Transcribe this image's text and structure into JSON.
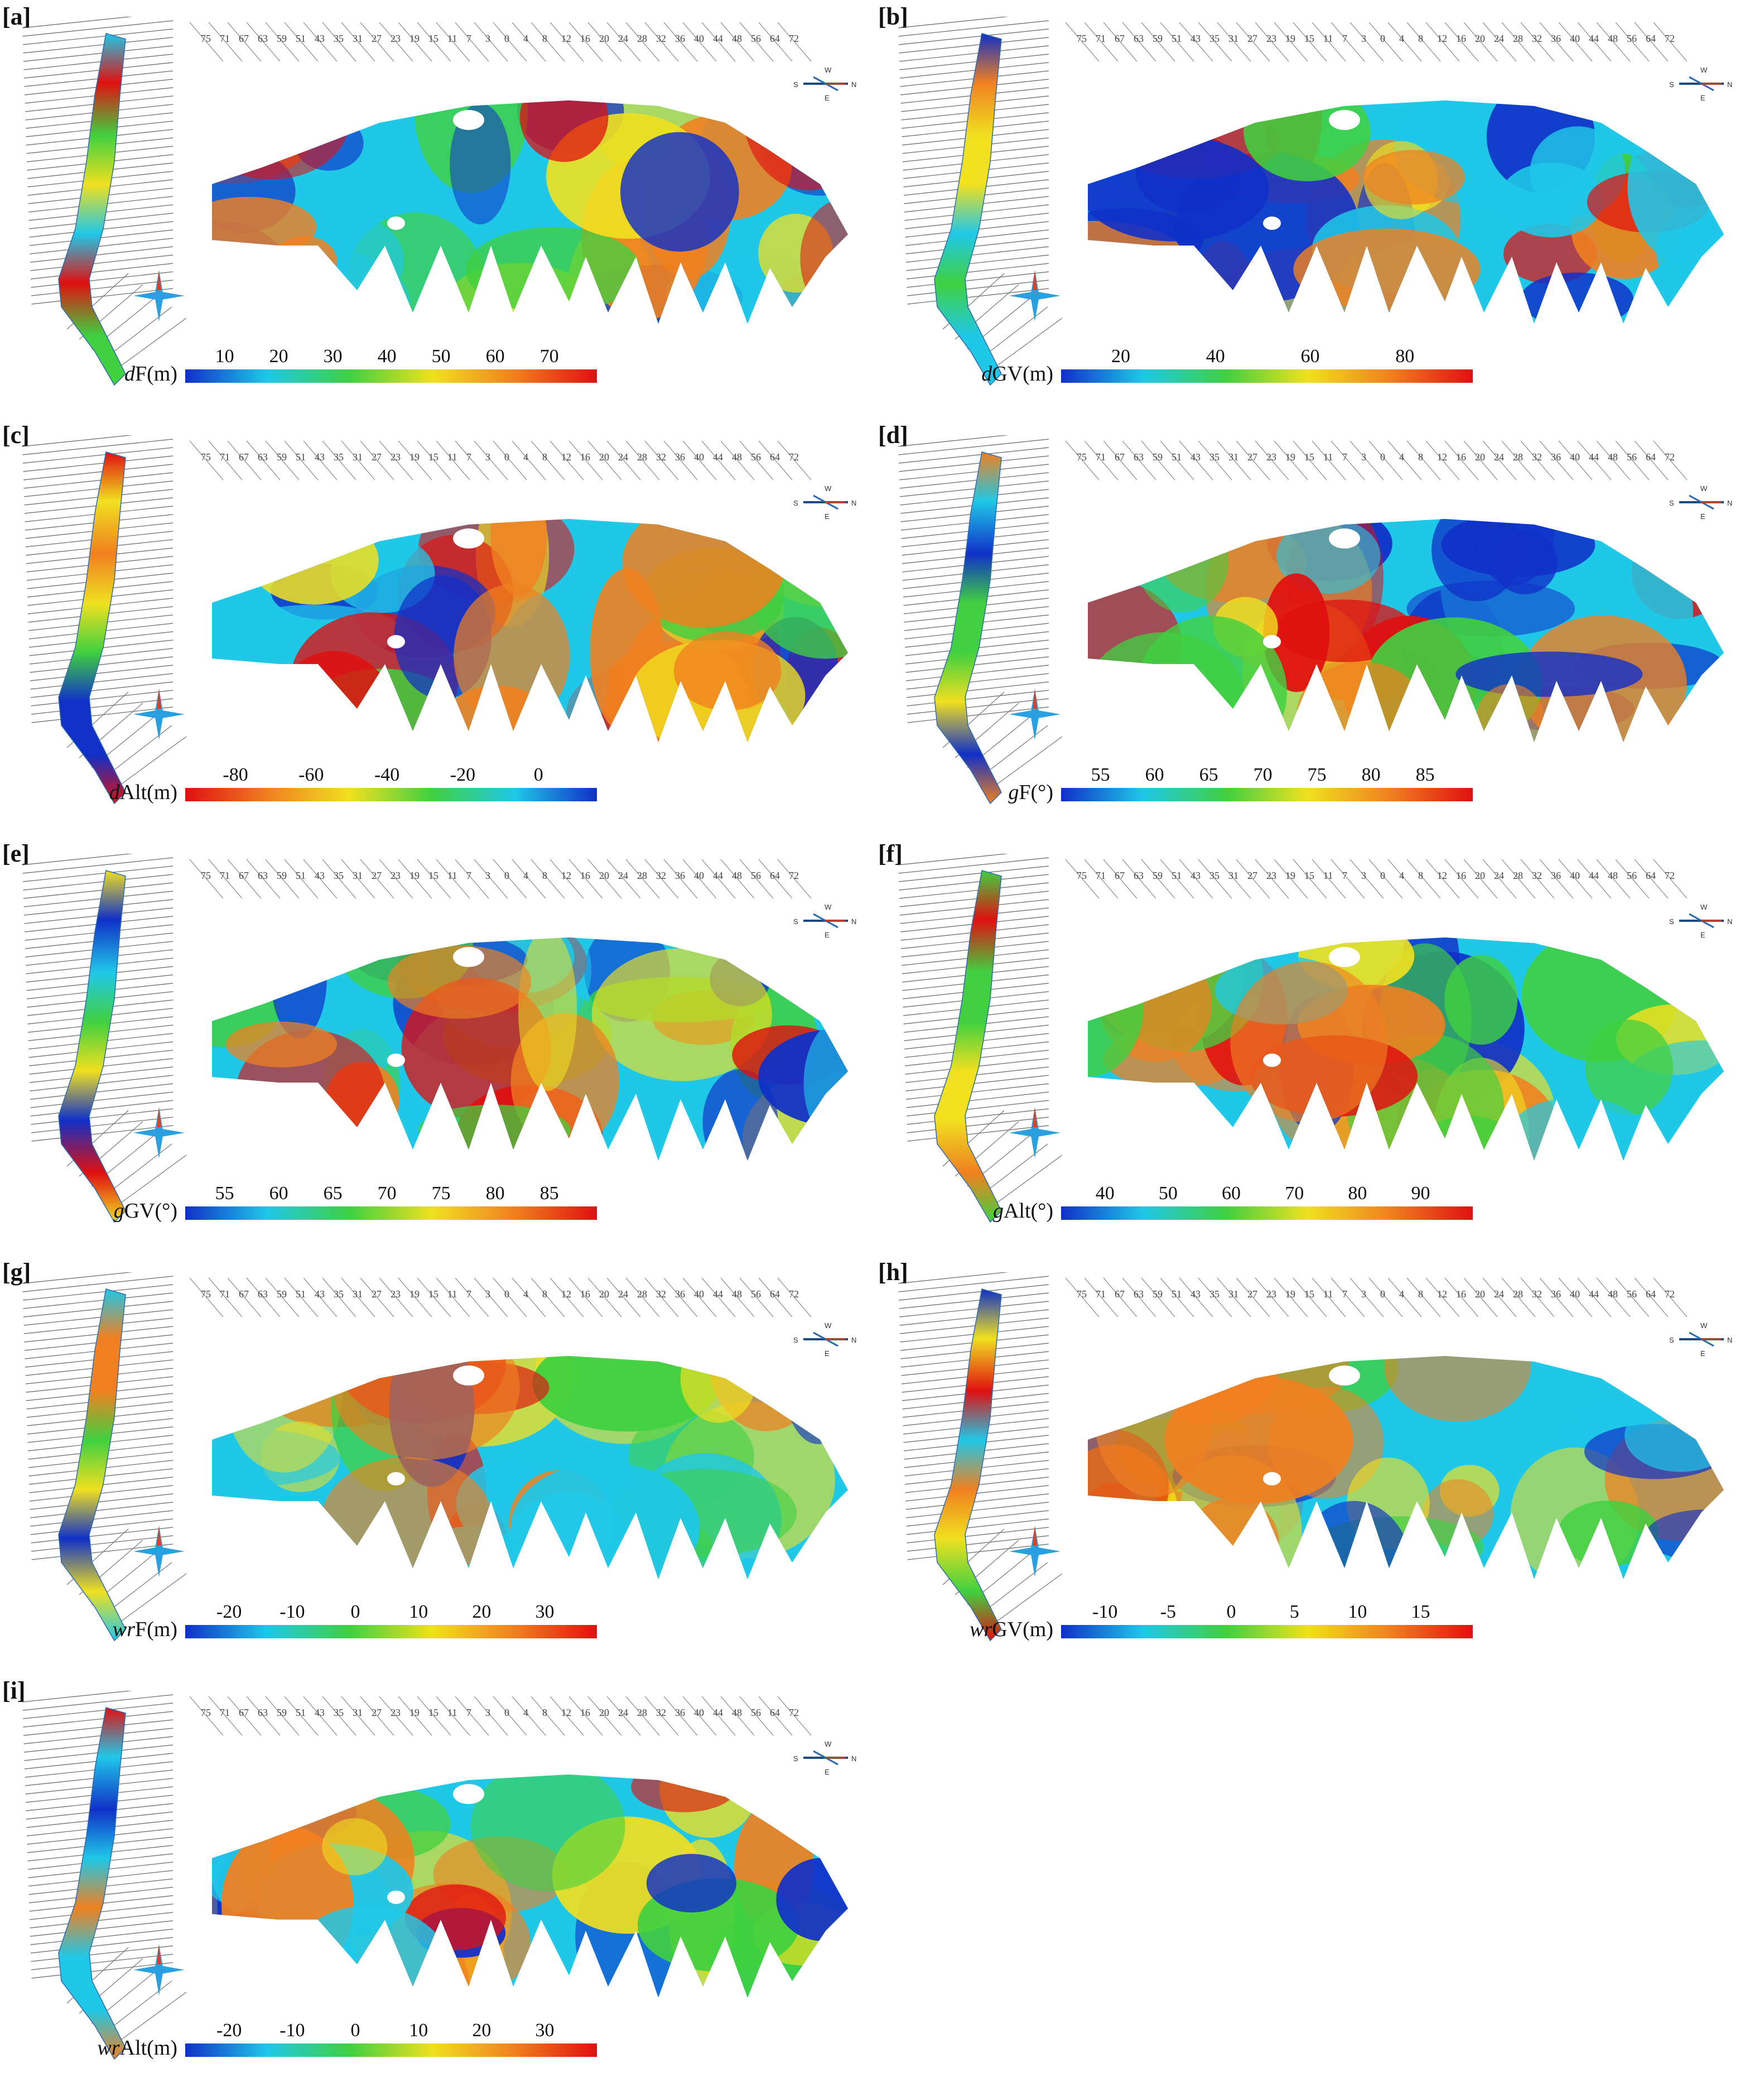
{
  "panels": [
    {
      "letter": "[a]",
      "title_italic": "d",
      "title_rest": "F(m)",
      "ticks": [
        "10",
        "20",
        "30",
        "40",
        "50",
        "60",
        "70"
      ],
      "reversed": false
    },
    {
      "letter": "[b]",
      "title_italic": "d",
      "title_rest": "GV(m)",
      "ticks": [
        "20",
        "40",
        "60",
        "80"
      ],
      "reversed": false
    },
    {
      "letter": "[c]",
      "title_italic": "d",
      "title_rest": "Alt(m)",
      "ticks": [
        "-80",
        "-60",
        "-40",
        "-20",
        "0"
      ],
      "reversed": true
    },
    {
      "letter": "[d]",
      "title_italic": "g",
      "title_rest": "F(°)",
      "ticks": [
        "55",
        "60",
        "65",
        "70",
        "75",
        "80",
        "85"
      ],
      "reversed": false
    },
    {
      "letter": "[e]",
      "title_italic": "g",
      "title_rest": "GV(°)",
      "ticks": [
        "55",
        "60",
        "65",
        "70",
        "75",
        "80",
        "85"
      ],
      "reversed": false
    },
    {
      "letter": "[f]",
      "title_italic": "g",
      "title_rest": "Alt(°)",
      "ticks": [
        "40",
        "50",
        "60",
        "70",
        "80",
        "90"
      ],
      "reversed": false
    },
    {
      "letter": "[g]",
      "title_italic": "wr",
      "title_rest": "F(m)",
      "ticks": [
        "-20",
        "-10",
        "0",
        "10",
        "20",
        "30"
      ],
      "reversed": false
    },
    {
      "letter": "[h]",
      "title_italic": "wr",
      "title_rest": "GV(m)",
      "ticks": [
        "-10",
        "-5",
        "0",
        "5",
        "10",
        "15"
      ],
      "reversed": false
    },
    {
      "letter": "[i]",
      "title_italic": "wr",
      "title_rest": "Alt(m)",
      "ticks": [
        "-20",
        "-10",
        "0",
        "10",
        "20",
        "30"
      ],
      "reversed": false
    }
  ],
  "section_labels": [
    "75",
    "71",
    "67",
    "63",
    "59",
    "51",
    "43",
    "35",
    "31",
    "27",
    "23",
    "19",
    "15",
    "11",
    "7",
    "3",
    "0",
    "4",
    "8",
    "12",
    "16",
    "20",
    "24",
    "28",
    "32",
    "36",
    "40",
    "44",
    "48",
    "56",
    "64",
    "72"
  ],
  "compass": {
    "n": "N",
    "s": "S",
    "e": "E",
    "w": "W"
  },
  "colors": {
    "blue": "#1030c8",
    "cyan": "#20c8e8",
    "green": "#40d040",
    "yellow": "#f0e020",
    "orange": "#f08020",
    "red": "#e01010"
  }
}
